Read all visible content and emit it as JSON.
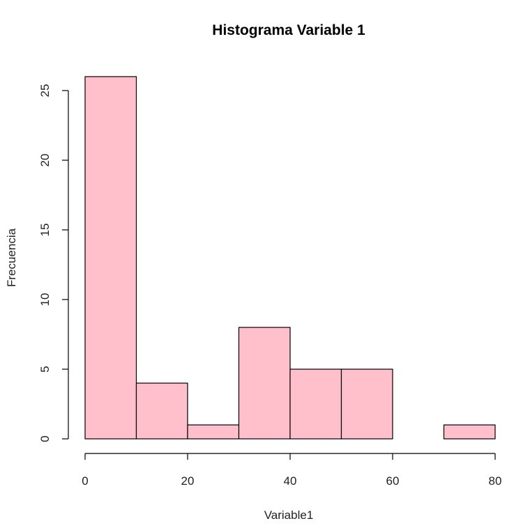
{
  "chart_data": {
    "type": "bar",
    "title": "Histograma Variable 1",
    "xlabel": "Variable1",
    "ylabel": "Frecuencia",
    "bins": [
      [
        0,
        10
      ],
      [
        10,
        20
      ],
      [
        20,
        30
      ],
      [
        30,
        40
      ],
      [
        40,
        50
      ],
      [
        50,
        60
      ],
      [
        60,
        70
      ],
      [
        70,
        80
      ]
    ],
    "values": [
      26,
      4,
      1,
      8,
      5,
      5,
      0,
      1
    ],
    "xlim": [
      0,
      80
    ],
    "ylim": [
      0,
      26
    ],
    "x_ticks": [
      "0",
      "20",
      "40",
      "60",
      "80"
    ],
    "y_ticks": [
      "0",
      "5",
      "10",
      "15",
      "20",
      "25"
    ],
    "bar_color": "#FFC0CB",
    "grid": false,
    "legend": "none"
  }
}
